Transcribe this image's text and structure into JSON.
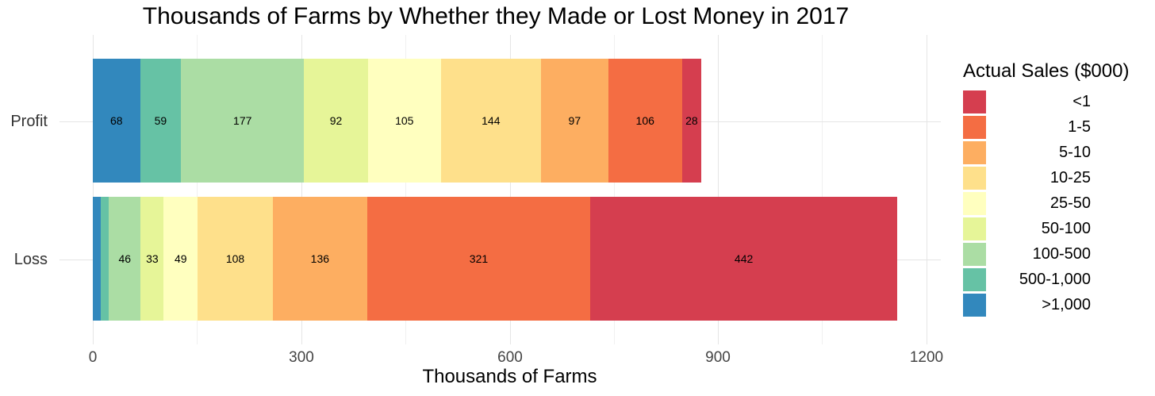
{
  "chart_data": {
    "type": "bar",
    "orientation": "horizontal",
    "stacked": true,
    "title": "Thousands of Farms by Whether they Made or Lost Money in 2017",
    "xlabel": "Thousands of Farms",
    "ylabel": "",
    "xlim": [
      0,
      1200
    ],
    "x_ticks": [
      "0",
      "300",
      "600",
      "900",
      "1200"
    ],
    "grid": true,
    "legend_position": "right",
    "legend_title": "Actual Sales ($000)",
    "categories": [
      "Profit",
      "Loss"
    ],
    "series": [
      {
        "name": ">1,000",
        "color": "#3288bd",
        "values": [
          68,
          11
        ],
        "labels": [
          "68",
          ""
        ]
      },
      {
        "name": "500-1,000",
        "color": "#66c2a5",
        "values": [
          59,
          12
        ],
        "labels": [
          "59",
          ""
        ]
      },
      {
        "name": "100-500",
        "color": "#abdda4",
        "values": [
          177,
          46
        ],
        "labels": [
          "177",
          "46"
        ]
      },
      {
        "name": "50-100",
        "color": "#e6f598",
        "values": [
          92,
          33
        ],
        "labels": [
          "92",
          "33"
        ]
      },
      {
        "name": "25-50",
        "color": "#ffffbf",
        "values": [
          105,
          49
        ],
        "labels": [
          "105",
          "49"
        ]
      },
      {
        "name": "10-25",
        "color": "#fee08b",
        "values": [
          144,
          108
        ],
        "labels": [
          "144",
          "108"
        ]
      },
      {
        "name": "5-10",
        "color": "#fdae61",
        "values": [
          97,
          136
        ],
        "labels": [
          "97",
          "136"
        ]
      },
      {
        "name": "1-5",
        "color": "#f46d43",
        "values": [
          106,
          321
        ],
        "labels": [
          "106",
          "321"
        ]
      },
      {
        "name": "<1",
        "color": "#d53e4f",
        "values": [
          28,
          442
        ],
        "labels": [
          "28",
          "442"
        ]
      }
    ],
    "legend_order": [
      "<1",
      "1-5",
      "5-10",
      "10-25",
      "25-50",
      "50-100",
      "100-500",
      "500-1,000",
      ">1,000"
    ]
  },
  "title": "Thousands of Farms by Whether they Made or Lost Money in 2017",
  "xaxis": {
    "title": "Thousands of Farms",
    "ticks": [
      "0",
      "300",
      "600",
      "900",
      "1200"
    ]
  },
  "yaxis": {
    "profit": "Profit",
    "loss": "Loss"
  },
  "legend": {
    "title": "Actual Sales ($000)",
    "items": [
      {
        "label": "<1",
        "color": "#d53e4f"
      },
      {
        "label": "1-5",
        "color": "#f46d43"
      },
      {
        "label": "5-10",
        "color": "#fdae61"
      },
      {
        "label": "10-25",
        "color": "#fee08b"
      },
      {
        "label": "25-50",
        "color": "#ffffbf"
      },
      {
        "label": "50-100",
        "color": "#e6f598"
      },
      {
        "label": "100-500",
        "color": "#abdda4"
      },
      {
        "label": "500-1,000",
        "color": "#66c2a5"
      },
      {
        "label": ">1,000",
        "color": "#3288bd"
      }
    ]
  }
}
